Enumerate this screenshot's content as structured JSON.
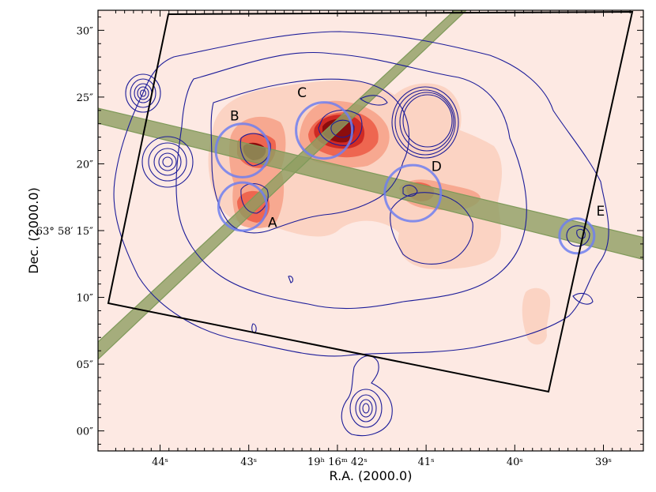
{
  "chart_data": {
    "type": "contour-image",
    "title": "",
    "xlabel": "R.A. (2000.0)",
    "ylabel": "Dec. (2000.0)",
    "x_ticks": [
      {
        "value_s": 44.0,
        "label": "44ˢ"
      },
      {
        "value_s": 43.0,
        "label": "43ˢ"
      },
      {
        "value_s": 42.0,
        "label": "19ʰ 16ᵐ 42ˢ"
      },
      {
        "value_s": 41.0,
        "label": "41ˢ"
      },
      {
        "value_s": 40.0,
        "label": "40ˢ"
      },
      {
        "value_s": 39.0,
        "label": "39ˢ"
      }
    ],
    "y_ticks": [
      {
        "value_arcsec": 30,
        "label": "30″"
      },
      {
        "value_arcsec": 25,
        "label": "25″"
      },
      {
        "value_arcsec": 20,
        "label": "20″"
      },
      {
        "value_arcsec": 15,
        "label": "63° 58′ 15″"
      },
      {
        "value_arcsec": 10,
        "label": "10″"
      },
      {
        "value_arcsec": 5,
        "label": "05″"
      },
      {
        "value_arcsec": 0,
        "label": "00″"
      }
    ],
    "xlim_s": [
      44.7,
      38.55
    ],
    "ylim_arcsec": [
      -1.5,
      31.5
    ],
    "sources": [
      {
        "label": "A",
        "ra_s": 43.07,
        "dec_arcsec": 16.8,
        "radius_arcsec": 1.8
      },
      {
        "label": "B",
        "ra_s": 43.07,
        "dec_arcsec": 21.0,
        "radius_arcsec": 2.0
      },
      {
        "label": "C",
        "ra_s": 42.15,
        "dec_arcsec": 22.5,
        "radius_arcsec": 2.1
      },
      {
        "label": "D",
        "ra_s": 41.15,
        "dec_arcsec": 17.8,
        "radius_arcsec": 2.1
      },
      {
        "label": "E",
        "ra_s": 39.3,
        "dec_arcsec": 14.6,
        "radius_arcsec": 1.3
      }
    ],
    "colors": {
      "background": "#fde9e3",
      "contour": "#1c1c99",
      "source_circle": "#6f7ff0",
      "slit": "#8e9d62",
      "heat_levels": [
        "#fbd3c3",
        "#f7a890",
        "#ee6650",
        "#cf2a24",
        "#8c0d0d"
      ]
    }
  }
}
